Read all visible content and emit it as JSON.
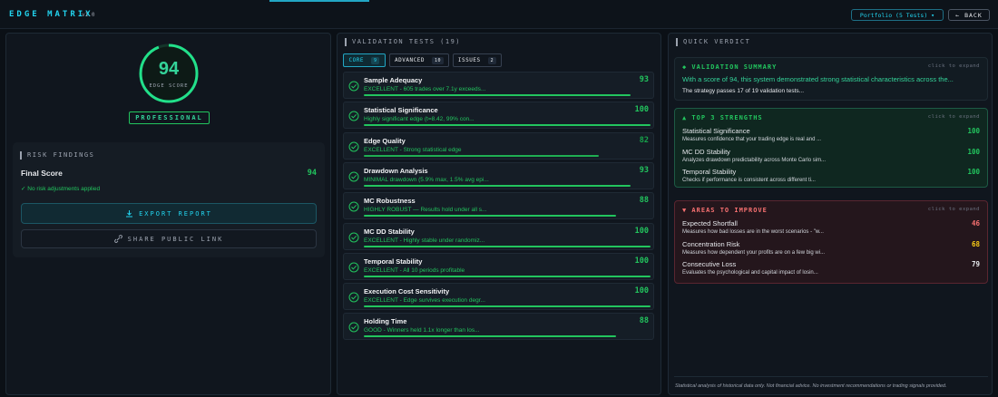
{
  "header": {
    "title": "EDGE MATRIX",
    "version": "v1.0",
    "portfolio": "Portfolio (5 Tests) ▾",
    "back": "← BACK"
  },
  "score_card": {
    "score": 94,
    "label": "EDGE SCORE",
    "grade": "PROFESSIONAL"
  },
  "risk_findings": {
    "title": "RISK FINDINGS",
    "final_score_label": "Final Score",
    "final_score": 94,
    "note": "✓ No risk adjustments applied"
  },
  "actions": {
    "export": "EXPORT REPORT",
    "share": "SHARE PUBLIC LINK"
  },
  "validation": {
    "title": "VALIDATION TESTS (19)",
    "tabs": [
      {
        "label": "CORE",
        "count": 9
      },
      {
        "label": "ADVANCED",
        "count": 10
      },
      {
        "label": "ISSUES",
        "count": 2
      }
    ],
    "tests": [
      {
        "name": "Sample Adequacy",
        "description": "EXCELLENT - 605 trades over 7.1y exceeds...",
        "score": 93
      },
      {
        "name": "Statistical Significance",
        "description": "Highly significant edge (t=8.42, 99% con...",
        "score": 100
      },
      {
        "name": "Edge Quality",
        "description": "EXCELLENT - Strong statistical edge",
        "score": 82
      },
      {
        "name": "Drawdown Analysis",
        "description": "MINIMAL drawdown (5.9% max, 1.5% avg epi...",
        "score": 93
      },
      {
        "name": "MC Robustness",
        "description": "HIGHLY ROBUST — Results hold under all s...",
        "score": 88
      },
      {
        "name": "MC DD Stability",
        "description": "EXCELLENT - Highly stable under randomiz...",
        "score": 100
      },
      {
        "name": "Temporal Stability",
        "description": "EXCELLENT - All 10 periods profitable",
        "score": 100
      },
      {
        "name": "Execution Cost Sensitivity",
        "description": "EXCELLENT - Edge survives execution degr...",
        "score": 100
      },
      {
        "name": "Holding Time",
        "description": "GOOD - Winners held 1.1x longer than los...",
        "score": 88
      }
    ]
  },
  "verdict": {
    "title": "QUICK VERDICT",
    "summary": {
      "title": "◆ VALIDATION SUMMARY",
      "hint": "click to expand",
      "headline": "With a score of 94, this system demonstrated strong statistical characteristics across the...",
      "text": "The strategy passes 17 of 19 validation tests..."
    },
    "strengths": {
      "title": "▲ TOP 3 STRENGTHS",
      "hint": "click to expand",
      "items": [
        {
          "name": "Statistical Significance",
          "description": "Measures confidence that your trading edge is real and ...",
          "score": 100
        },
        {
          "name": "MC DD Stability",
          "description": "Analyzes drawdown predictability across Monte Carlo sim...",
          "score": 100
        },
        {
          "name": "Temporal Stability",
          "description": "Checks if performance is consistent across different ti...",
          "score": 100
        }
      ]
    },
    "improve": {
      "title": "▼ AREAS TO IMPROVE",
      "hint": "click to expand",
      "items": [
        {
          "name": "Expected Shortfall",
          "description": "Measures how bad losses are in the worst scenarios - \"w...",
          "score": 46
        },
        {
          "name": "Concentration Risk",
          "description": "Measures how dependent your profits are on a few big wi...",
          "score": 68
        },
        {
          "name": "Consecutive Loss",
          "description": "Evaluates the psychological and capital impact of losin...",
          "score": 79
        }
      ]
    }
  },
  "footer": "Statistical analysis of historical data only. Not financial advice. No investment recommendations or trading signals provided."
}
